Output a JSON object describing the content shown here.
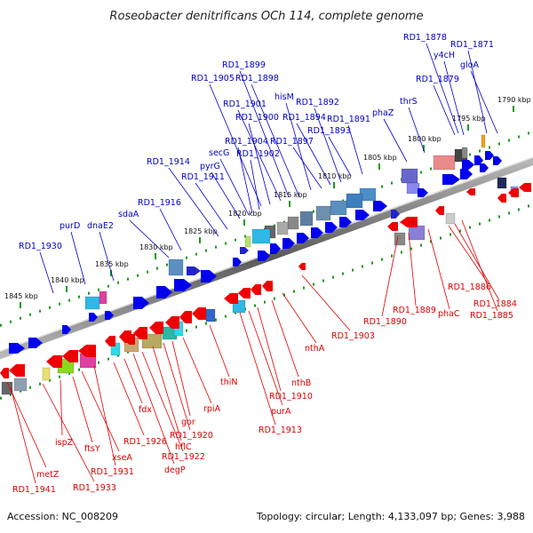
{
  "title": "Roseobacter denitrificans OCh 114, complete genome",
  "footer": {
    "accession": "Accession: NC_008209",
    "summary": "Topology: circular; Length: 4,133,097 bp; Genes: 3,988"
  },
  "colors": {
    "forward_label": "#0000cc",
    "reverse_label": "#dd0000",
    "forward_gene": "#0000ee",
    "reverse_gene": "#ee0000",
    "tick": "#1a9a1a",
    "backbone": "#777777"
  },
  "scale": {
    "unit": "kbp",
    "marks": [
      "1790 kbp",
      "1795 kbp",
      "1800 kbp",
      "1805 kbp",
      "1810 kbp",
      "1815 kbp",
      "1820 kbp",
      "1825 kbp",
      "1830 kbp",
      "1835 kbp",
      "1840 kbp",
      "1845 kbp"
    ]
  },
  "forward_genes": [
    "RD1_1878",
    "RD1_1871",
    "y4cH",
    "gloA",
    "RD1_1879",
    "thrS",
    "phaZ",
    "RD1_1891",
    "RD1_1893",
    "RD1_1892",
    "RD1_1894",
    "RD1_1897",
    "hisM",
    "RD1_1898",
    "RD1_1899",
    "RD1_1901",
    "RD1_1900",
    "RD1_1905",
    "RD1_1902",
    "RD1_1904",
    "secG",
    "pyrG",
    "RD1_1911",
    "RD1_1914",
    "RD1_1916",
    "sdaA",
    "dnaE2",
    "purD",
    "RD1_1930"
  ],
  "reverse_genes": [
    "RD1_1886",
    "RD1_1884",
    "RD1_1885",
    "phaC",
    "RD1_1889",
    "RD1_1890",
    "RD1_1903",
    "nthA",
    "nthB",
    "RD1_1910",
    "purA",
    "RD1_1913",
    "thiN",
    "rpiA",
    "gor",
    "RD1_1920",
    "hflC",
    "RD1_1922",
    "degP",
    "fdx",
    "RD1_1926",
    "RD1_1931",
    "xseA",
    "ftsY",
    "ispZ",
    "metZ",
    "RD1_1933",
    "RD1_1941"
  ]
}
